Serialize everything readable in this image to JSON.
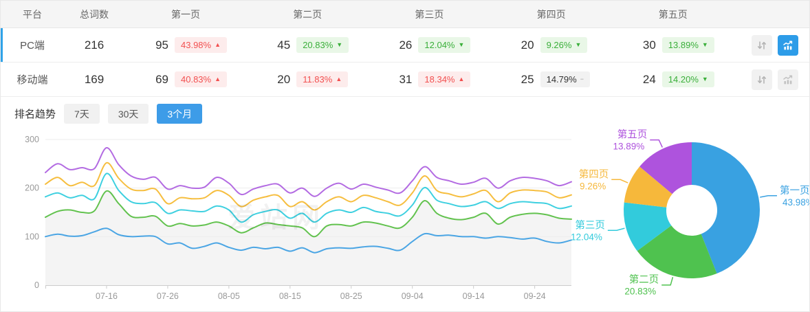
{
  "table": {
    "headers": {
      "platform": "平台",
      "total": "总词数",
      "p1": "第一页",
      "p2": "第二页",
      "p3": "第三页",
      "p4": "第四页",
      "p5": "第五页"
    },
    "rows": [
      {
        "platform": "PC端",
        "total": "216",
        "selected": true,
        "trend_active": true,
        "pages": [
          {
            "count": "95",
            "pct": "43.98%",
            "arrow": "▲",
            "tone": "red"
          },
          {
            "count": "45",
            "pct": "20.83%",
            "arrow": "▼",
            "tone": "green"
          },
          {
            "count": "26",
            "pct": "12.04%",
            "arrow": "▼",
            "tone": "green"
          },
          {
            "count": "20",
            "pct": "9.26%",
            "arrow": "▼",
            "tone": "green"
          },
          {
            "count": "30",
            "pct": "13.89%",
            "arrow": "▼",
            "tone": "green"
          }
        ]
      },
      {
        "platform": "移动端",
        "total": "169",
        "selected": false,
        "trend_active": false,
        "pages": [
          {
            "count": "69",
            "pct": "40.83%",
            "arrow": "▲",
            "tone": "red"
          },
          {
            "count": "20",
            "pct": "11.83%",
            "arrow": "▲",
            "tone": "red"
          },
          {
            "count": "31",
            "pct": "18.34%",
            "arrow": "▲",
            "tone": "red"
          },
          {
            "count": "25",
            "pct": "14.79%",
            "arrow": "−",
            "tone": "gray"
          },
          {
            "count": "24",
            "pct": "14.20%",
            "arrow": "▼",
            "tone": "green"
          }
        ]
      }
    ],
    "row_icons": {
      "sort": "sort-arrows-icon",
      "trend": "trend-chart-icon"
    }
  },
  "trend": {
    "title": "排名趋势",
    "tabs": {
      "t7": "7天",
      "t30": "30天",
      "t90": "3个月"
    },
    "active_tab": "3个月"
  },
  "watermark": "爱站网",
  "accent_colors": {
    "selected_row": "#2fa2e8",
    "active_tab": "#3d9ce8",
    "up_red": "#f25050",
    "down_green": "#3aaf3a"
  },
  "chart_data": [
    {
      "type": "line",
      "title": "排名趋势 3个月",
      "ylim": [
        0,
        300
      ],
      "yticks": [
        0,
        100,
        200,
        300
      ],
      "grid": true,
      "x_tick_labels": [
        "07-16",
        "07-26",
        "08-05",
        "08-15",
        "08-25",
        "09-04",
        "09-14",
        "09-24"
      ],
      "x_tick_indices": [
        5,
        10,
        15,
        20,
        25,
        30,
        35,
        40
      ],
      "n_points": 44,
      "series": [
        {
          "name": "第一页",
          "color": "#4aa5e4",
          "area": false,
          "values": [
            100,
            105,
            101,
            102,
            110,
            117,
            104,
            100,
            101,
            100,
            85,
            87,
            76,
            80,
            87,
            78,
            72,
            78,
            75,
            78,
            70,
            77,
            67,
            75,
            77,
            76,
            79,
            80,
            76,
            72,
            90,
            106,
            102,
            103,
            100,
            100,
            97,
            100,
            98,
            95,
            97,
            90,
            87,
            93
          ]
        },
        {
          "name": "第二页",
          "color": "#62c24e",
          "area": true,
          "area_color": "#f4f4f4",
          "values": [
            140,
            152,
            155,
            150,
            153,
            194,
            168,
            142,
            140,
            142,
            122,
            127,
            122,
            124,
            130,
            122,
            108,
            118,
            128,
            125,
            122,
            118,
            100,
            122,
            125,
            122,
            130,
            128,
            122,
            118,
            140,
            174,
            148,
            138,
            135,
            140,
            148,
            126,
            140,
            146,
            148,
            145,
            138,
            136
          ]
        },
        {
          "name": "第三页",
          "color": "#3ed0e0",
          "area": false,
          "values": [
            182,
            190,
            180,
            185,
            178,
            230,
            195,
            172,
            168,
            170,
            148,
            155,
            153,
            152,
            163,
            155,
            130,
            145,
            152,
            155,
            138,
            148,
            130,
            148,
            155,
            150,
            160,
            152,
            148,
            143,
            165,
            201,
            175,
            168,
            162,
            165,
            172,
            158,
            168,
            172,
            170,
            168,
            158,
            163
          ]
        },
        {
          "name": "第四页",
          "color": "#f6be3f",
          "area": false,
          "values": [
            208,
            222,
            205,
            212,
            205,
            252,
            220,
            198,
            195,
            198,
            168,
            180,
            178,
            180,
            195,
            185,
            162,
            175,
            182,
            185,
            162,
            172,
            155,
            172,
            182,
            172,
            185,
            180,
            172,
            165,
            190,
            225,
            195,
            188,
            182,
            188,
            195,
            172,
            190,
            196,
            195,
            192,
            180,
            186
          ]
        },
        {
          "name": "第五页",
          "color": "#b36be2",
          "area": false,
          "values": [
            232,
            250,
            238,
            242,
            240,
            283,
            248,
            225,
            218,
            222,
            198,
            205,
            200,
            202,
            222,
            210,
            187,
            198,
            205,
            208,
            190,
            200,
            183,
            200,
            210,
            198,
            208,
            202,
            196,
            190,
            215,
            244,
            222,
            215,
            208,
            212,
            220,
            200,
            215,
            222,
            220,
            215,
            205,
            213
          ]
        }
      ]
    },
    {
      "type": "pie",
      "donut": true,
      "slices": [
        {
          "label": "第一页",
          "value": 43.98,
          "pct": "43.98%",
          "color": "#39a1e1"
        },
        {
          "label": "第二页",
          "value": 20.83,
          "pct": "20.83%",
          "color": "#4fc24f"
        },
        {
          "label": "第三页",
          "value": 12.04,
          "pct": "12.04%",
          "color": "#32cbdc"
        },
        {
          "label": "第四页",
          "value": 9.26,
          "pct": "9.26%",
          "color": "#f6b83b"
        },
        {
          "label": "第五页",
          "value": 13.89,
          "pct": "13.89%",
          "color": "#ae53dd"
        }
      ]
    }
  ]
}
